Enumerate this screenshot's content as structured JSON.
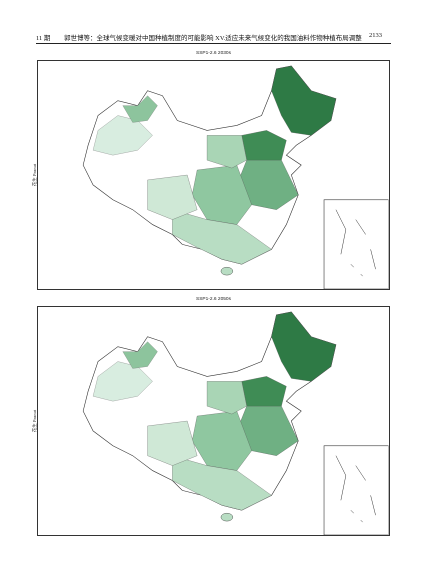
{
  "header": {
    "issue": "11 期",
    "title": "郭世博等：全球气候变暖对中国种植制度的可能影响 XV.适应未来气候变化的我国油料作物种植布局调整",
    "page": "2133"
  },
  "figures": [
    {
      "title": "SSP1-2.6 2030s",
      "crop_label": "花生 Peanut"
    },
    {
      "title": "SSP1-2.6 2050s",
      "crop_label": "花生 Peanut"
    }
  ]
}
